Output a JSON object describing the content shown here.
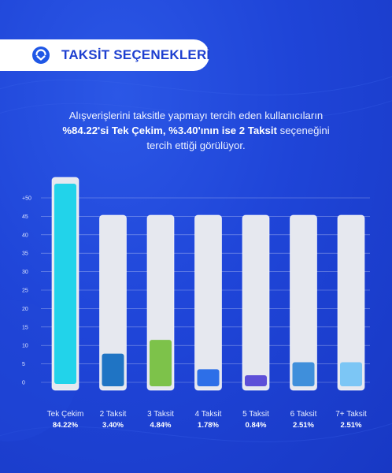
{
  "header": {
    "title": "TAKSİT SEÇENEKLERİ"
  },
  "intro": {
    "line1": "Alışverişlerini taksitle yapmayı tercih eden kullanıcıların",
    "line2_bold": "%84.22'si Tek Çekim, %3.40'ının ise 2 Taksit",
    "line2_rest": " seçeneğini",
    "line3": "tercih ettiği görülüyor."
  },
  "chart_data": {
    "type": "bar",
    "categories": [
      "Tek Çekim",
      "2 Taksit",
      "3 Taksit",
      "4 Taksit",
      "5 Taksit",
      "6 Taksit",
      "7+ Taksit"
    ],
    "value_labels": [
      "84.22%",
      "3.40%",
      "4.84%",
      "1.78%",
      "0.84%",
      "2.51%",
      "2.51%"
    ],
    "values": [
      84.22,
      3.4,
      4.84,
      1.78,
      0.84,
      2.51,
      2.51
    ],
    "y_ticks": [
      "+50",
      "45",
      "40",
      "35",
      "30",
      "25",
      "20",
      "15",
      "10",
      "5",
      "0"
    ],
    "ylim": [
      0,
      50
    ],
    "grid": true,
    "colors": {
      "track": "#e6e8ef",
      "bars": [
        "#22d3ea",
        "#1f74c4",
        "#7dc24a",
        "#2d6fe8",
        "#5d4fd8",
        "#3f8fdb",
        "#7cc6f5"
      ]
    }
  }
}
